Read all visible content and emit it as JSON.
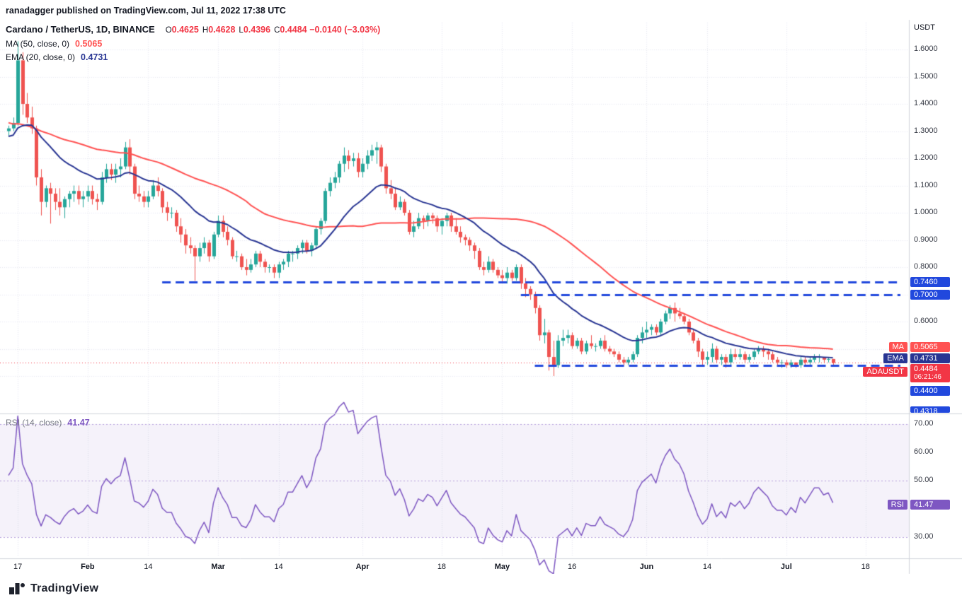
{
  "header": {
    "byline": "ranadagger published on TradingView.com, Jul 11, 2022 17:38 UTC"
  },
  "symbol_legend": {
    "title": "Cardano / TetherUS, 1D, BINANCE",
    "o_label": "O",
    "o": "0.4625",
    "h_label": "H",
    "h": "0.4628",
    "l_label": "L",
    "l": "0.4396",
    "c_label": "C",
    "c": "0.4484",
    "change": "−0.0140 (−3.03%)"
  },
  "ma_legend": {
    "text": "MA (50, close, 0)",
    "value": "0.5065"
  },
  "ema_legend": {
    "text": "EMA (20, close, 0)",
    "value": "0.4731"
  },
  "rsi_legend": {
    "text": "RSI (14, close)",
    "value": "41.47"
  },
  "price_axis": {
    "unit": "USDT",
    "ticks": [
      {
        "t": "1.6000",
        "p": 1.6
      },
      {
        "t": "1.5000",
        "p": 1.5
      },
      {
        "t": "1.4000",
        "p": 1.4
      },
      {
        "t": "1.3000",
        "p": 1.3
      },
      {
        "t": "1.2000",
        "p": 1.2
      },
      {
        "t": "1.1000",
        "p": 1.1
      },
      {
        "t": "1.0000",
        "p": 1.0
      },
      {
        "t": "0.9000",
        "p": 0.9
      },
      {
        "t": "0.8000",
        "p": 0.8
      },
      {
        "t": "0.6000",
        "p": 0.6
      }
    ]
  },
  "rsi_axis": {
    "ticks": [
      {
        "t": "70.00",
        "v": 70
      },
      {
        "t": "60.00",
        "v": 60
      },
      {
        "t": "50.00",
        "v": 50
      },
      {
        "t": "30.00",
        "v": 30
      }
    ]
  },
  "time_axis": {
    "ticks": [
      {
        "label": "17",
        "day": 2,
        "major": false
      },
      {
        "label": "Feb",
        "day": 17,
        "major": true
      },
      {
        "label": "14",
        "day": 30,
        "major": false
      },
      {
        "label": "Mar",
        "day": 45,
        "major": true
      },
      {
        "label": "14",
        "day": 58,
        "major": false
      },
      {
        "label": "Apr",
        "day": 76,
        "major": true
      },
      {
        "label": "18",
        "day": 93,
        "major": false
      },
      {
        "label": "May",
        "day": 106,
        "major": true
      },
      {
        "label": "16",
        "day": 121,
        "major": false
      },
      {
        "label": "Jun",
        "day": 137,
        "major": true
      },
      {
        "label": "14",
        "day": 150,
        "major": false
      },
      {
        "label": "Jul",
        "day": 167,
        "major": true
      },
      {
        "label": "18",
        "day": 184,
        "major": false
      }
    ]
  },
  "axis_badges": {
    "ma": {
      "name": "MA",
      "value": "0.5065"
    },
    "ema": {
      "name": "EMA",
      "value": "0.4731"
    },
    "price": {
      "name": "ADAUSDT",
      "value": "0.4484",
      "countdown": "06:21:46"
    },
    "rsi": {
      "name": "RSI",
      "value": "41.47"
    }
  },
  "footer": {
    "brand": "TradingView"
  },
  "colors": {
    "up": "#26a69a",
    "down": "#ef5350",
    "ma": "#ff5252",
    "ema": "#283593",
    "level": "#2148dd",
    "rsi": "#7e57c2",
    "last_price": "#f23645",
    "grid": "#e7e9ef",
    "border": "#d1d4dc"
  },
  "chart_data": {
    "type": "candlestick",
    "symbol": "ADAUSDT",
    "exchange": "BINANCE",
    "interval": "1D",
    "title": "Cardano / TetherUS, 1D, BINANCE",
    "start_date": "2022-01-15",
    "ohlc_current": {
      "open": 0.4625,
      "high": 0.4628,
      "low": 0.4396,
      "close": 0.4484,
      "change": -0.014,
      "change_pct": -3.03
    },
    "indicators": {
      "ma50_close": 0.5065,
      "ema20_close": 0.4731,
      "rsi14_close": 41.47
    },
    "levels": [
      {
        "price": 0.746,
        "label": "0.7460",
        "from_day": 33,
        "clipped": false
      },
      {
        "price": 0.7,
        "label": "0.7000",
        "from_day": 110,
        "clipped": false
      },
      {
        "price": 0.44,
        "label": "0.4400",
        "from_day": 113,
        "clipped": false
      },
      {
        "price": 0.4318,
        "label": "0.4318",
        "from_day": 113,
        "clipped": true
      }
    ],
    "grid_prices": [
      0.4,
      0.5,
      0.6,
      0.7,
      0.8,
      0.9,
      1.0,
      1.1,
      1.2,
      1.3,
      1.4,
      1.5,
      1.6
    ],
    "rsi_bands": [
      30,
      50,
      70
    ],
    "pre_closes": [
      1.58,
      1.56,
      1.52,
      1.55,
      1.57,
      1.54,
      1.5,
      1.42,
      1.38,
      1.35,
      1.4,
      1.36,
      1.33,
      1.3,
      1.28,
      1.31,
      1.33,
      1.36,
      1.34,
      1.3,
      1.27,
      1.25,
      1.29,
      1.31,
      1.28,
      1.26,
      1.3,
      1.33,
      1.37,
      1.35,
      1.32,
      1.3,
      1.31,
      1.33,
      1.36,
      1.38,
      1.34,
      1.31,
      1.28,
      1.24,
      1.2,
      1.17,
      1.15,
      1.18,
      1.22,
      1.26,
      1.29,
      1.27,
      1.3,
      1.31
    ],
    "candles": [
      [
        1.3,
        1.32,
        1.28,
        1.31
      ],
      [
        1.31,
        1.35,
        1.3,
        1.33
      ],
      [
        1.33,
        1.63,
        1.32,
        1.56
      ],
      [
        1.56,
        1.59,
        1.36,
        1.4
      ],
      [
        1.4,
        1.44,
        1.33,
        1.35
      ],
      [
        1.35,
        1.39,
        1.29,
        1.31
      ],
      [
        1.31,
        1.32,
        1.1,
        1.13
      ],
      [
        1.13,
        1.16,
        0.99,
        1.04
      ],
      [
        1.04,
        1.1,
        1.02,
        1.09
      ],
      [
        1.09,
        1.11,
        0.96,
        1.07
      ],
      [
        1.07,
        1.09,
        1.01,
        1.04
      ],
      [
        1.04,
        1.09,
        0.99,
        1.02
      ],
      [
        1.02,
        1.06,
        0.98,
        1.05
      ],
      [
        1.05,
        1.08,
        1.02,
        1.07
      ],
      [
        1.07,
        1.1,
        1.04,
        1.08
      ],
      [
        1.08,
        1.1,
        1.03,
        1.05
      ],
      [
        1.05,
        1.08,
        1.02,
        1.06
      ],
      [
        1.06,
        1.1,
        1.04,
        1.08
      ],
      [
        1.08,
        1.1,
        1.03,
        1.05
      ],
      [
        1.05,
        1.07,
        1.01,
        1.04
      ],
      [
        1.04,
        1.15,
        1.03,
        1.13
      ],
      [
        1.13,
        1.18,
        1.11,
        1.16
      ],
      [
        1.16,
        1.18,
        1.12,
        1.14
      ],
      [
        1.14,
        1.18,
        1.11,
        1.16
      ],
      [
        1.16,
        1.2,
        1.13,
        1.17
      ],
      [
        1.17,
        1.26,
        1.16,
        1.24
      ],
      [
        1.24,
        1.27,
        1.14,
        1.17
      ],
      [
        1.17,
        1.18,
        1.05,
        1.07
      ],
      [
        1.07,
        1.1,
        1.04,
        1.06
      ],
      [
        1.06,
        1.08,
        1.02,
        1.04
      ],
      [
        1.04,
        1.08,
        1.02,
        1.06
      ],
      [
        1.06,
        1.12,
        1.05,
        1.1
      ],
      [
        1.1,
        1.13,
        1.06,
        1.08
      ],
      [
        1.08,
        1.09,
        1.0,
        1.02
      ],
      [
        1.02,
        1.04,
        0.97,
        1.0
      ],
      [
        1.0,
        1.02,
        0.98,
        1.0
      ],
      [
        1.0,
        1.01,
        0.93,
        0.95
      ],
      [
        0.95,
        0.98,
        0.89,
        0.92
      ],
      [
        0.92,
        0.94,
        0.85,
        0.88
      ],
      [
        0.88,
        0.91,
        0.85,
        0.87
      ],
      [
        0.87,
        0.88,
        0.75,
        0.84
      ],
      [
        0.84,
        0.89,
        0.82,
        0.87
      ],
      [
        0.87,
        0.91,
        0.85,
        0.89
      ],
      [
        0.89,
        0.9,
        0.82,
        0.84
      ],
      [
        0.84,
        0.93,
        0.83,
        0.92
      ],
      [
        0.92,
        0.99,
        0.91,
        0.97
      ],
      [
        0.97,
        0.99,
        0.91,
        0.93
      ],
      [
        0.93,
        0.95,
        0.88,
        0.9
      ],
      [
        0.9,
        0.91,
        0.83,
        0.84
      ],
      [
        0.84,
        0.86,
        0.82,
        0.84
      ],
      [
        0.84,
        0.85,
        0.79,
        0.8
      ],
      [
        0.8,
        0.83,
        0.77,
        0.79
      ],
      [
        0.79,
        0.83,
        0.78,
        0.81
      ],
      [
        0.81,
        0.86,
        0.8,
        0.85
      ],
      [
        0.85,
        0.86,
        0.8,
        0.82
      ],
      [
        0.82,
        0.83,
        0.78,
        0.8
      ],
      [
        0.8,
        0.81,
        0.78,
        0.8
      ],
      [
        0.8,
        0.81,
        0.76,
        0.78
      ],
      [
        0.78,
        0.82,
        0.76,
        0.81
      ],
      [
        0.81,
        0.83,
        0.79,
        0.82
      ],
      [
        0.82,
        0.86,
        0.8,
        0.85
      ],
      [
        0.85,
        0.86,
        0.82,
        0.85
      ],
      [
        0.85,
        0.88,
        0.83,
        0.87
      ],
      [
        0.87,
        0.9,
        0.85,
        0.89
      ],
      [
        0.89,
        0.9,
        0.85,
        0.86
      ],
      [
        0.86,
        0.89,
        0.84,
        0.88
      ],
      [
        0.88,
        0.95,
        0.87,
        0.94
      ],
      [
        0.94,
        0.98,
        0.92,
        0.97
      ],
      [
        0.97,
        1.09,
        0.96,
        1.08
      ],
      [
        1.08,
        1.13,
        1.06,
        1.11
      ],
      [
        1.11,
        1.15,
        1.09,
        1.13
      ],
      [
        1.13,
        1.19,
        1.11,
        1.18
      ],
      [
        1.18,
        1.24,
        1.15,
        1.21
      ],
      [
        1.21,
        1.23,
        1.16,
        1.19
      ],
      [
        1.19,
        1.22,
        1.17,
        1.2
      ],
      [
        1.2,
        1.22,
        1.13,
        1.15
      ],
      [
        1.15,
        1.2,
        1.13,
        1.18
      ],
      [
        1.18,
        1.23,
        1.16,
        1.21
      ],
      [
        1.21,
        1.25,
        1.19,
        1.23
      ],
      [
        1.23,
        1.26,
        1.18,
        1.24
      ],
      [
        1.24,
        1.25,
        1.15,
        1.17
      ],
      [
        1.17,
        1.18,
        1.07,
        1.09
      ],
      [
        1.09,
        1.12,
        1.05,
        1.07
      ],
      [
        1.07,
        1.09,
        1.01,
        1.02
      ],
      [
        1.02,
        1.06,
        1.01,
        1.04
      ],
      [
        1.04,
        1.05,
        0.99,
        1.0
      ],
      [
        1.0,
        1.01,
        0.92,
        0.93
      ],
      [
        0.93,
        0.97,
        0.91,
        0.95
      ],
      [
        0.95,
        1.0,
        0.94,
        0.98
      ],
      [
        0.98,
        0.99,
        0.94,
        0.97
      ],
      [
        0.97,
        1.0,
        0.95,
        0.99
      ],
      [
        0.99,
        1.0,
        0.96,
        0.98
      ],
      [
        0.98,
        0.99,
        0.93,
        0.95
      ],
      [
        0.95,
        0.98,
        0.92,
        0.97
      ],
      [
        0.97,
        1.0,
        0.95,
        0.99
      ],
      [
        0.99,
        1.0,
        0.93,
        0.95
      ],
      [
        0.95,
        0.98,
        0.92,
        0.93
      ],
      [
        0.93,
        0.95,
        0.89,
        0.91
      ],
      [
        0.91,
        0.92,
        0.88,
        0.9
      ],
      [
        0.9,
        0.91,
        0.86,
        0.88
      ],
      [
        0.88,
        0.89,
        0.83,
        0.86
      ],
      [
        0.86,
        0.87,
        0.79,
        0.8
      ],
      [
        0.8,
        0.82,
        0.77,
        0.79
      ],
      [
        0.79,
        0.84,
        0.78,
        0.82
      ],
      [
        0.82,
        0.83,
        0.78,
        0.79
      ],
      [
        0.79,
        0.8,
        0.76,
        0.77
      ],
      [
        0.77,
        0.79,
        0.74,
        0.76
      ],
      [
        0.76,
        0.8,
        0.74,
        0.78
      ],
      [
        0.78,
        0.79,
        0.75,
        0.76
      ],
      [
        0.76,
        0.81,
        0.75,
        0.8
      ],
      [
        0.8,
        0.81,
        0.72,
        0.74
      ],
      [
        0.74,
        0.76,
        0.69,
        0.72
      ],
      [
        0.72,
        0.73,
        0.68,
        0.7
      ],
      [
        0.7,
        0.71,
        0.63,
        0.65
      ],
      [
        0.65,
        0.66,
        0.53,
        0.55
      ],
      [
        0.55,
        0.61,
        0.52,
        0.56
      ],
      [
        0.56,
        0.57,
        0.42,
        0.47
      ],
      [
        0.47,
        0.53,
        0.4,
        0.44
      ],
      [
        0.44,
        0.55,
        0.43,
        0.53
      ],
      [
        0.53,
        0.57,
        0.51,
        0.54
      ],
      [
        0.54,
        0.57,
        0.52,
        0.55
      ],
      [
        0.55,
        0.56,
        0.5,
        0.51
      ],
      [
        0.51,
        0.54,
        0.5,
        0.53
      ],
      [
        0.53,
        0.54,
        0.48,
        0.49
      ],
      [
        0.49,
        0.53,
        0.48,
        0.52
      ],
      [
        0.52,
        0.55,
        0.5,
        0.51
      ],
      [
        0.51,
        0.52,
        0.49,
        0.51
      ],
      [
        0.51,
        0.54,
        0.5,
        0.53
      ],
      [
        0.53,
        0.55,
        0.49,
        0.5
      ],
      [
        0.5,
        0.51,
        0.48,
        0.49
      ],
      [
        0.49,
        0.5,
        0.47,
        0.48
      ],
      [
        0.48,
        0.49,
        0.45,
        0.46
      ],
      [
        0.46,
        0.47,
        0.44,
        0.45
      ],
      [
        0.45,
        0.47,
        0.44,
        0.46
      ],
      [
        0.46,
        0.49,
        0.45,
        0.48
      ],
      [
        0.48,
        0.55,
        0.47,
        0.54
      ],
      [
        0.54,
        0.58,
        0.52,
        0.56
      ],
      [
        0.56,
        0.6,
        0.54,
        0.57
      ],
      [
        0.57,
        0.59,
        0.55,
        0.58
      ],
      [
        0.58,
        0.59,
        0.55,
        0.56
      ],
      [
        0.56,
        0.61,
        0.55,
        0.6
      ],
      [
        0.6,
        0.64,
        0.59,
        0.63
      ],
      [
        0.63,
        0.66,
        0.61,
        0.65
      ],
      [
        0.65,
        0.67,
        0.6,
        0.63
      ],
      [
        0.63,
        0.65,
        0.61,
        0.62
      ],
      [
        0.62,
        0.63,
        0.59,
        0.6
      ],
      [
        0.6,
        0.61,
        0.55,
        0.56
      ],
      [
        0.56,
        0.57,
        0.52,
        0.53
      ],
      [
        0.53,
        0.54,
        0.47,
        0.49
      ],
      [
        0.49,
        0.5,
        0.44,
        0.46
      ],
      [
        0.46,
        0.49,
        0.44,
        0.47
      ],
      [
        0.47,
        0.52,
        0.45,
        0.5
      ],
      [
        0.5,
        0.51,
        0.45,
        0.46
      ],
      [
        0.46,
        0.48,
        0.44,
        0.47
      ],
      [
        0.47,
        0.48,
        0.43,
        0.45
      ],
      [
        0.45,
        0.5,
        0.44,
        0.48
      ],
      [
        0.48,
        0.5,
        0.46,
        0.47
      ],
      [
        0.47,
        0.5,
        0.46,
        0.48
      ],
      [
        0.48,
        0.49,
        0.45,
        0.46
      ],
      [
        0.46,
        0.48,
        0.45,
        0.47
      ],
      [
        0.47,
        0.5,
        0.46,
        0.49
      ],
      [
        0.49,
        0.51,
        0.48,
        0.5
      ],
      [
        0.5,
        0.51,
        0.47,
        0.49
      ],
      [
        0.49,
        0.5,
        0.46,
        0.48
      ],
      [
        0.48,
        0.49,
        0.45,
        0.46
      ],
      [
        0.46,
        0.47,
        0.44,
        0.45
      ],
      [
        0.45,
        0.46,
        0.43,
        0.45
      ],
      [
        0.45,
        0.46,
        0.43,
        0.44
      ],
      [
        0.44,
        0.46,
        0.43,
        0.45
      ],
      [
        0.45,
        0.45,
        0.43,
        0.44
      ],
      [
        0.44,
        0.47,
        0.43,
        0.46
      ],
      [
        0.46,
        0.47,
        0.44,
        0.45
      ],
      [
        0.45,
        0.47,
        0.44,
        0.46
      ],
      [
        0.46,
        0.48,
        0.45,
        0.47
      ],
      [
        0.47,
        0.48,
        0.45,
        0.47
      ],
      [
        0.47,
        0.47,
        0.45,
        0.46
      ],
      [
        0.46,
        0.47,
        0.45,
        0.4625
      ],
      [
        0.4625,
        0.4628,
        0.4396,
        0.4484
      ]
    ]
  }
}
